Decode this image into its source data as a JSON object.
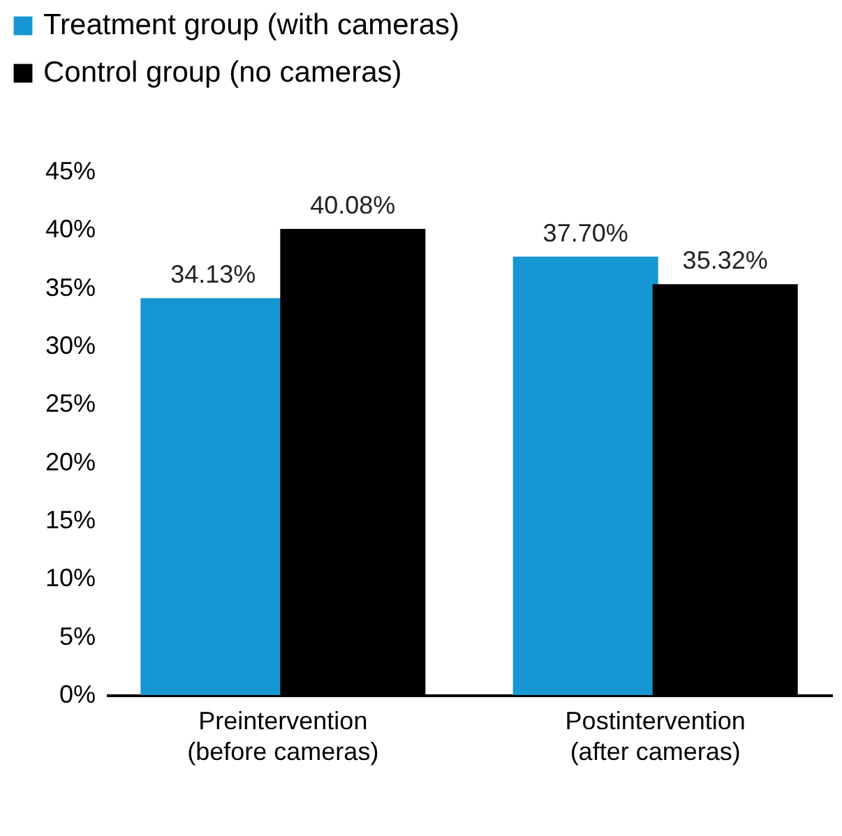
{
  "chart_data": {
    "type": "bar",
    "categories": [
      "Preintervention (before cameras)",
      "Postintervention (after cameras)"
    ],
    "series": [
      {
        "name": "Treatment group (with cameras)",
        "color": "#1696d2",
        "values": [
          34.13,
          37.7
        ],
        "value_labels": [
          "34.13%",
          "37.70%"
        ]
      },
      {
        "name": "Control group (no cameras)",
        "color": "#000000",
        "values": [
          40.08,
          35.32
        ],
        "value_labels": [
          "40.08%",
          "35.32%"
        ]
      }
    ],
    "ylim": [
      0,
      45
    ],
    "yticks": [
      {
        "value": 0,
        "label": "0%"
      },
      {
        "value": 5,
        "label": "5%"
      },
      {
        "value": 10,
        "label": "10%"
      },
      {
        "value": 15,
        "label": "15%"
      },
      {
        "value": 20,
        "label": "20%"
      },
      {
        "value": 25,
        "label": "25%"
      },
      {
        "value": 30,
        "label": "30%"
      },
      {
        "value": 35,
        "label": "35%"
      },
      {
        "value": 40,
        "label": "40%"
      },
      {
        "value": 45,
        "label": "45%"
      }
    ],
    "grid": false,
    "legend": "top left"
  }
}
